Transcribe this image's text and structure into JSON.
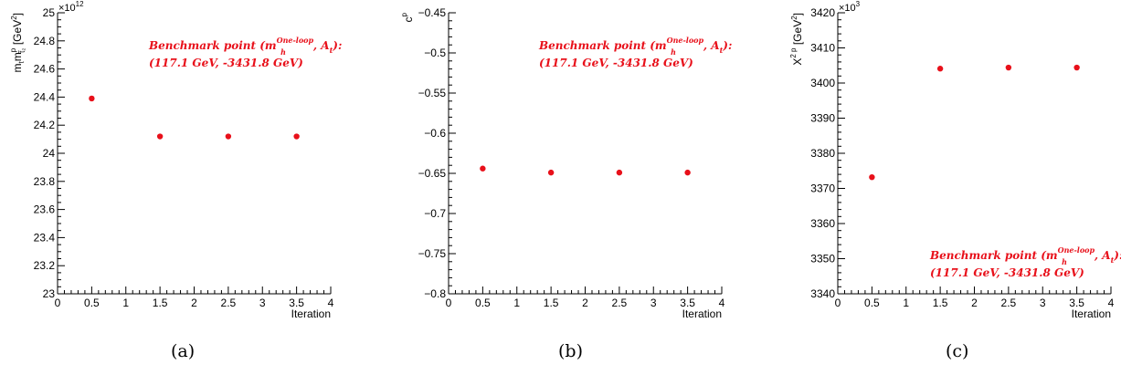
{
  "colors": {
    "marker": "#e8101a",
    "annotation": "#e8101a",
    "axis": "#000000"
  },
  "annotation": {
    "prefix": "Benchmark point (m",
    "sub": "h",
    "sup": "One-loop",
    "mid": ", A",
    "sub2": "t",
    "suffix": "):",
    "line2": "(117.1 GeV, -3431.8 GeV)"
  },
  "captions": [
    "(a)",
    "(b)",
    "(c)"
  ],
  "chart_data": [
    {
      "type": "scatter",
      "title": "",
      "xlabel": "Iteration",
      "ylabel_parts": {
        "main": "m",
        "sub": "t",
        "main2": "m",
        "sup": "p",
        "sub2": "t̃₂",
        "unit": "[GeV",
        "unitsup": "2",
        "unitend": "]"
      },
      "exponent_label": "×10",
      "exponent_power": "12",
      "xlim": [
        0,
        4
      ],
      "ylim": [
        23,
        25
      ],
      "xticks": [
        "0",
        "0.5",
        "1",
        "1.5",
        "2",
        "2.5",
        "3",
        "3.5",
        "4"
      ],
      "yticks": [
        "23",
        "23.2",
        "23.4",
        "23.6",
        "23.8",
        "24",
        "24.2",
        "24.4",
        "24.6",
        "24.8",
        "25"
      ],
      "x": [
        0.5,
        1.5,
        2.5,
        3.5
      ],
      "y": [
        24.39,
        24.12,
        24.12,
        24.12
      ],
      "legend_position": "top-right"
    },
    {
      "type": "scatter",
      "title": "",
      "xlabel": "Iteration",
      "ylabel_parts": {
        "main": "c",
        "sup": "p"
      },
      "xlim": [
        0,
        4
      ],
      "ylim": [
        -0.8,
        -0.45
      ],
      "xticks": [
        "0",
        "0.5",
        "1",
        "1.5",
        "2",
        "2.5",
        "3",
        "3.5",
        "4"
      ],
      "yticks": [
        "−0.8",
        "−0.75",
        "−0.7",
        "−0.65",
        "−0.6",
        "−0.55",
        "−0.5",
        "−0.45"
      ],
      "x": [
        0.5,
        1.5,
        2.5,
        3.5
      ],
      "y": [
        -0.644,
        -0.649,
        -0.649,
        -0.649
      ],
      "legend_position": "top-right"
    },
    {
      "type": "scatter",
      "title": "",
      "xlabel": "Iteration",
      "ylabel_parts": {
        "main": "X",
        "sup": "2 p",
        "unit": "[GeV",
        "unitsup": "2",
        "unitend": "]"
      },
      "exponent_label": "×10",
      "exponent_power": "3",
      "xlim": [
        0,
        4
      ],
      "ylim": [
        3340,
        3420
      ],
      "xticks": [
        "0",
        "0.5",
        "1",
        "1.5",
        "2",
        "2.5",
        "3",
        "3.5",
        "4"
      ],
      "yticks": [
        "3340",
        "3350",
        "3360",
        "3370",
        "3380",
        "3390",
        "3400",
        "3410",
        "3420"
      ],
      "x": [
        0.5,
        1.5,
        2.5,
        3.5
      ],
      "y": [
        3373.2,
        3404.1,
        3404.4,
        3404.4
      ],
      "legend_position": "bottom-right"
    }
  ]
}
